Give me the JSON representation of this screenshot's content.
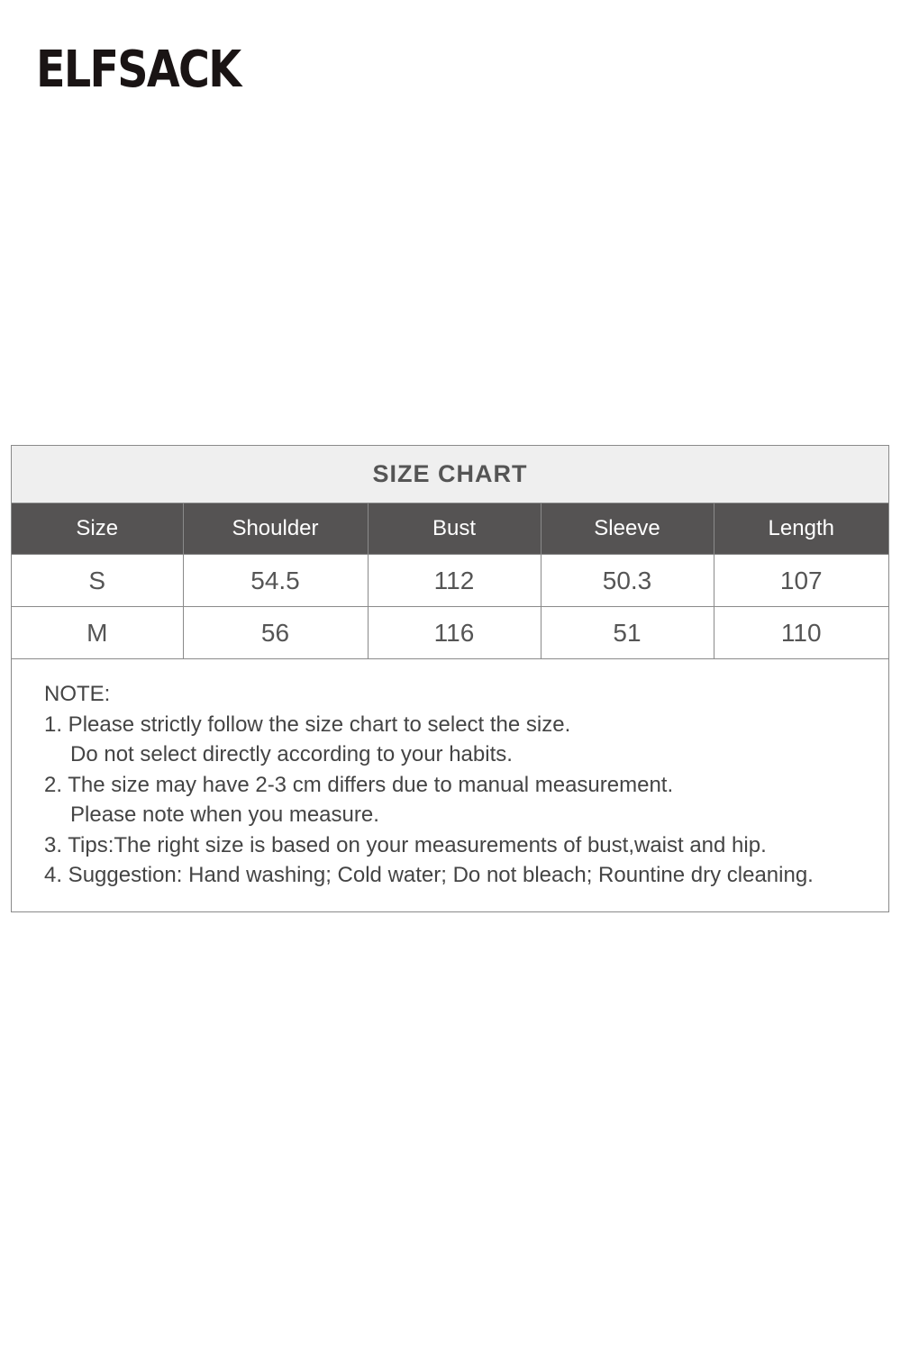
{
  "brand": {
    "logo_text": "ELFSACK"
  },
  "size_chart": {
    "title": "SIZE CHART",
    "columns": [
      "Size",
      "Shoulder",
      "Bust",
      "Sleeve",
      "Length"
    ],
    "rows": [
      [
        "S",
        "54.5",
        "112",
        "50.3",
        "107"
      ],
      [
        "M",
        "56",
        "116",
        "51",
        "110"
      ]
    ]
  },
  "notes": {
    "heading": "NOTE:",
    "lines": [
      "1. Please strictly follow the size chart to select the size.",
      "Do not select directly according to your habits.",
      "2. The size may have 2-3 cm differs due to manual measurement.",
      "Please note when you measure.",
      "3. Tips:The right size is based on your measurements of bust,waist and hip.",
      "4. Suggestion: Hand washing; Cold water; Do not bleach; Rountine dry cleaning."
    ]
  }
}
